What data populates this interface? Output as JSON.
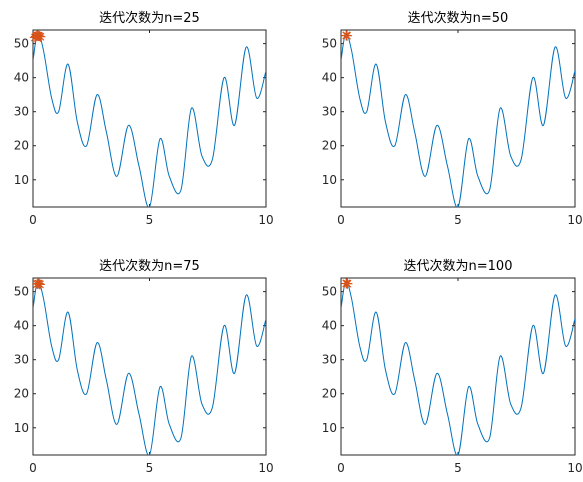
{
  "chart_data": [
    {
      "type": "line",
      "title": "迭代次数为n=25",
      "xlabel": "",
      "ylabel": "",
      "xlim": [
        0,
        10
      ],
      "ylim": [
        2,
        54
      ],
      "xticks": [
        0,
        5,
        10
      ],
      "yticks": [
        10,
        20,
        30,
        40,
        50
      ],
      "grid": false,
      "series": [
        {
          "style": "line",
          "color": "#0072BD",
          "x": [
            0,
            0.2,
            0.45,
            0.8,
            1.1,
            1.5,
            1.9,
            2.3,
            2.75,
            3.15,
            3.6,
            4.1,
            4.55,
            5.0,
            5.45,
            5.85,
            6.35,
            6.8,
            7.25,
            7.7,
            8.2,
            8.65,
            9.15,
            9.6,
            10
          ],
          "y": [
            45,
            53,
            48,
            34,
            30,
            44,
            27,
            20,
            35,
            24,
            11,
            26,
            14,
            2,
            22,
            11,
            7,
            31,
            17,
            16,
            40,
            26,
            49,
            34,
            42
          ]
        },
        {
          "style": "markers",
          "marker": "star",
          "color": "#D95319",
          "x": [
            0.08,
            0.12,
            0.16,
            0.2,
            0.24,
            0.28,
            0.32
          ],
          "y": [
            51.8,
            52.1,
            52.3,
            52.4,
            52.3,
            52.2,
            52.0
          ]
        }
      ]
    },
    {
      "type": "line",
      "title": "迭代次数为n=50",
      "xlabel": "",
      "ylabel": "",
      "xlim": [
        0,
        10
      ],
      "ylim": [
        2,
        54
      ],
      "xticks": [
        0,
        5,
        10
      ],
      "yticks": [
        10,
        20,
        30,
        40,
        50
      ],
      "grid": false,
      "series": [
        {
          "style": "line",
          "color": "#0072BD",
          "x": [
            0,
            0.2,
            0.45,
            0.8,
            1.1,
            1.5,
            1.9,
            2.3,
            2.75,
            3.15,
            3.6,
            4.1,
            4.55,
            5.0,
            5.45,
            5.85,
            6.35,
            6.8,
            7.25,
            7.7,
            8.2,
            8.65,
            9.15,
            9.6,
            10
          ],
          "y": [
            45,
            53,
            48,
            34,
            30,
            44,
            27,
            20,
            35,
            24,
            11,
            26,
            14,
            2,
            22,
            11,
            7,
            31,
            17,
            16,
            40,
            26,
            49,
            34,
            42
          ]
        },
        {
          "style": "markers",
          "marker": "star",
          "color": "#D95319",
          "x": [
            0.22,
            0.24,
            0.26
          ],
          "y": [
            52.4,
            52.4,
            52.3
          ]
        }
      ]
    },
    {
      "type": "line",
      "title": "迭代次数为n=75",
      "xlabel": "",
      "ylabel": "",
      "xlim": [
        0,
        10
      ],
      "ylim": [
        2,
        54
      ],
      "xticks": [
        0,
        5,
        10
      ],
      "yticks": [
        10,
        20,
        30,
        40,
        50
      ],
      "grid": false,
      "series": [
        {
          "style": "line",
          "color": "#0072BD",
          "x": [
            0,
            0.2,
            0.45,
            0.8,
            1.1,
            1.5,
            1.9,
            2.3,
            2.75,
            3.15,
            3.6,
            4.1,
            4.55,
            5.0,
            5.45,
            5.85,
            6.35,
            6.8,
            7.25,
            7.7,
            8.2,
            8.65,
            9.15,
            9.6,
            10
          ],
          "y": [
            45,
            53,
            48,
            34,
            30,
            44,
            27,
            20,
            35,
            24,
            11,
            26,
            14,
            2,
            22,
            11,
            7,
            31,
            17,
            16,
            40,
            26,
            49,
            34,
            42
          ]
        },
        {
          "style": "markers",
          "marker": "star",
          "color": "#D95319",
          "x": [
            0.18,
            0.22,
            0.26,
            0.3
          ],
          "y": [
            52.2,
            52.4,
            52.3,
            52.1
          ]
        }
      ]
    },
    {
      "type": "line",
      "title": "迭代次数为n=100",
      "xlabel": "",
      "ylabel": "",
      "xlim": [
        0,
        10
      ],
      "ylim": [
        2,
        54
      ],
      "xticks": [
        0,
        5,
        10
      ],
      "yticks": [
        10,
        20,
        30,
        40,
        50
      ],
      "grid": false,
      "series": [
        {
          "style": "line",
          "color": "#0072BD",
          "x": [
            0,
            0.2,
            0.45,
            0.8,
            1.1,
            1.5,
            1.9,
            2.3,
            2.75,
            3.15,
            3.6,
            4.1,
            4.55,
            5.0,
            5.45,
            5.85,
            6.35,
            6.8,
            7.25,
            7.7,
            8.2,
            8.65,
            9.15,
            9.6,
            10
          ],
          "y": [
            45,
            53,
            48,
            34,
            30,
            44,
            27,
            20,
            35,
            24,
            11,
            26,
            14,
            2,
            22,
            11,
            7,
            31,
            17,
            16,
            40,
            26,
            49,
            34,
            42
          ]
        },
        {
          "style": "markers",
          "marker": "star",
          "color": "#D95319",
          "x": [
            0.22,
            0.25,
            0.28
          ],
          "y": [
            52.4,
            52.4,
            52.3
          ]
        }
      ]
    }
  ]
}
